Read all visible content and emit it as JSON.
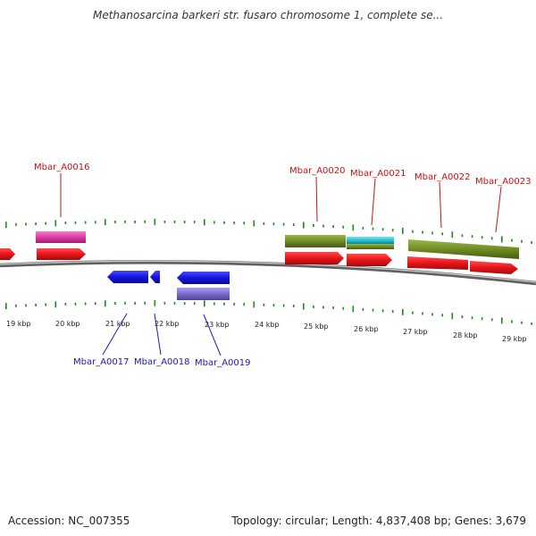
{
  "title": "Methanosarcina barkeri str. fusaro chromosome 1, complete se...",
  "footer": {
    "accession": "Accession: NC_007355",
    "summary": "Topology: circular; Length: 4,837,408 bp; Genes: 3,679"
  },
  "colors": {
    "forward_gene": "#e8141a",
    "reverse_gene": "#1414e0",
    "forward_pink": "#e03aa6",
    "reverse_purple": "#7a6ccf",
    "olive": "#6f8b22",
    "cyan": "#22c4d6",
    "tick_green": "#1a8a1a",
    "backbone": "#8a8a8a"
  },
  "scale": {
    "labels": [
      "19 kbp",
      "20 kbp",
      "21 kbp",
      "22 kbp",
      "23 kbp",
      "24 kbp",
      "25 kbp",
      "26 kbp",
      "27 kbp",
      "28 kbp",
      "29 kbp"
    ]
  },
  "genes_top": [
    {
      "label": "Mbar_A0016"
    },
    {
      "label": "Mbar_A0020"
    },
    {
      "label": "Mbar_A0021"
    },
    {
      "label": "Mbar_A0022"
    },
    {
      "label": "Mbar_A0023"
    }
  ],
  "genes_bottom": [
    {
      "label": "Mbar_A0017"
    },
    {
      "label": "Mbar_A0018"
    },
    {
      "label": "Mbar_A0019"
    }
  ]
}
